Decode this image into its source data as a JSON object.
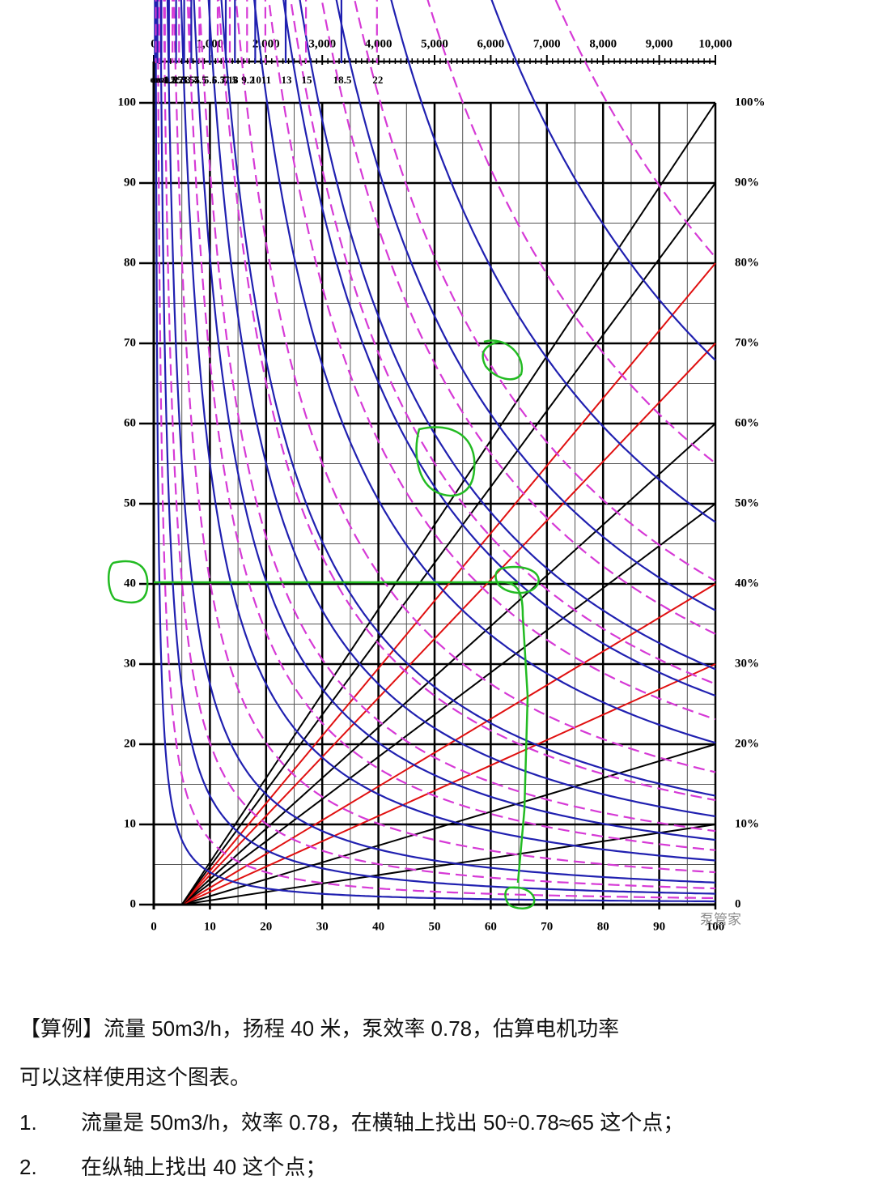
{
  "chart_data": {
    "type": "nomogram",
    "xlim": [
      0,
      100
    ],
    "xticks": [
      0,
      10,
      20,
      30,
      40,
      50,
      60,
      70,
      80,
      90,
      100
    ],
    "ylim": [
      0,
      100
    ],
    "yticks": [
      0,
      10,
      20,
      30,
      40,
      50,
      60,
      70,
      80,
      90,
      100
    ],
    "y2lim": [
      0,
      100
    ],
    "y2ticks": [
      0,
      {
        "value": 10,
        "label": "10%"
      },
      {
        "value": 20,
        "label": "20%"
      },
      {
        "value": 30,
        "label": "30%"
      },
      {
        "value": 40,
        "label": "40%"
      },
      {
        "value": 50,
        "label": "50%"
      },
      {
        "value": 60,
        "label": "60%"
      },
      {
        "value": 70,
        "label": "70%"
      },
      {
        "value": 80,
        "label": "80%"
      },
      {
        "value": 90,
        "label": "90%"
      },
      {
        "value": 100,
        "label": "100%"
      }
    ],
    "y2_line_colors": [
      "#000000",
      "#000000",
      "#000000",
      "#e01010",
      "#e01010",
      "#000000",
      "#000000",
      "#e01010",
      "#e01010",
      "#000000",
      "#000000"
    ],
    "efficiency_origin_x": 5,
    "x2lim": [
      0,
      10000
    ],
    "x2ticks": [
      0,
      {
        "value": 1000,
        "label": "1,000"
      },
      {
        "value": 2000,
        "label": "2,000"
      },
      {
        "value": 3000,
        "label": "3,000"
      },
      {
        "value": 4000,
        "label": "4,000"
      },
      {
        "value": 5000,
        "label": "5,000"
      },
      {
        "value": 6000,
        "label": "6,000"
      },
      {
        "value": 7000,
        "label": "7,000"
      },
      {
        "value": 8000,
        "label": "8,000"
      },
      {
        "value": 9000,
        "label": "9,000"
      },
      {
        "value": 10000,
        "label": "10,000"
      }
    ],
    "grid": true,
    "curves": [
      {
        "power": 0.11,
        "color": "#2020b0",
        "dashed": false
      },
      {
        "power": 0.22,
        "color": "#d63ad6",
        "dashed": true
      },
      {
        "power": 0.37,
        "color": "#2020b0",
        "dashed": false
      },
      {
        "power": 0.55,
        "color": "#d63ad6",
        "dashed": true
      },
      {
        "power": 0.75,
        "color": "#2020b0",
        "dashed": false
      },
      {
        "power": 1.1,
        "color": "#d63ad6",
        "dashed": true
      },
      {
        "power": 1.5,
        "color": "#2020b0",
        "dashed": false
      },
      {
        "power": 1.85,
        "color": "#d63ad6",
        "dashed": true
      },
      {
        "power": 2.2,
        "color": "#2020b0",
        "dashed": false
      },
      {
        "power": 2.5,
        "color": "#d63ad6",
        "dashed": true
      },
      {
        "power": 3,
        "color": "#2020b0",
        "dashed": false
      },
      {
        "power": 3.55,
        "color": "#d63ad6",
        "dashed": true
      },
      {
        "power": 3.7,
        "color": "#2020b0",
        "dashed": false
      },
      {
        "power": 4.5,
        "color": "#d63ad6",
        "dashed": true
      },
      {
        "power": 5.5,
        "color": "#2020b0",
        "dashed": false
      },
      {
        "power": 6.3,
        "color": "#d63ad6",
        "dashed": true
      },
      {
        "power": 7.1,
        "color": "#2020b0",
        "dashed": false
      },
      {
        "power": 7.5,
        "color": "#d63ad6",
        "dashed": true
      },
      {
        "power": 8,
        "color": "#2020b0",
        "dashed": false
      },
      {
        "power": 9.2,
        "color": "#d63ad6",
        "dashed": true
      },
      {
        "power": 10,
        "color": "#2020b0",
        "dashed": false
      },
      {
        "power": 11,
        "color": "#d63ad6",
        "dashed": true
      },
      {
        "power": 13,
        "color": "#2020b0",
        "dashed": false
      },
      {
        "power": 15,
        "color": "#d63ad6",
        "dashed": true
      },
      {
        "power": 18.5,
        "color": "#2020b0",
        "dashed": false
      },
      {
        "power": 22,
        "color": "#d63ad6",
        "dashed": true
      }
    ],
    "watermark": "泵管家"
  },
  "article": {
    "example": "【算例】流量 50m3/h，扬程 40 米，泵效率 0.78，估算电机功率",
    "intro": "可以这样使用这个图表。",
    "steps": [
      {
        "number": "1.",
        "text": "流量是 50m3/h，效率 0.78，在横轴上找出 50÷0.78≈65 这个点；"
      },
      {
        "number": "2.",
        "text": "在纵轴上找出 40 这个点；"
      }
    ]
  }
}
